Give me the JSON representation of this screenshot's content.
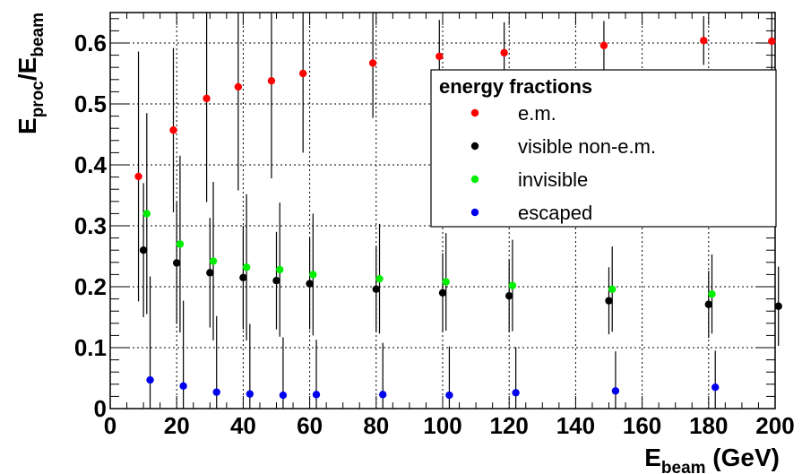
{
  "chart_data": {
    "type": "scatter",
    "xlabel_main": "E",
    "xlabel_sub": "beam",
    "xlabel_unit": " (GeV)",
    "ylabel_main": "E",
    "ylabel_sub1": "proc",
    "ylabel_sep": "/E",
    "ylabel_sub2": "beam",
    "xlim": [
      0,
      200
    ],
    "ylim": [
      0,
      0.65
    ],
    "xticks": [
      "0",
      "20",
      "40",
      "60",
      "80",
      "100",
      "120",
      "140",
      "160",
      "180",
      "200"
    ],
    "yticks": [
      "0",
      "0.1",
      "0.2",
      "0.3",
      "0.4",
      "0.5",
      "0.6"
    ],
    "grid": true,
    "legend_title": "energy fractions",
    "legend_position": "top-right",
    "series": [
      {
        "name": "e.m.",
        "color": "#ff0000",
        "x": [
          8.5,
          19,
          29,
          38.5,
          48.5,
          58,
          79,
          99,
          118.5,
          148.5,
          178.5,
          199
        ],
        "y": [
          0.381,
          0.457,
          0.509,
          0.528,
          0.538,
          0.55,
          0.567,
          0.578,
          0.584,
          0.596,
          0.604,
          0.603
        ],
        "err": [
          0.205,
          0.135,
          0.17,
          0.17,
          0.16,
          0.13,
          0.09,
          0.06,
          0.05,
          0.04,
          0.04,
          0.06
        ]
      },
      {
        "name": "visible non-e.m.",
        "color": "#000000",
        "x": [
          10,
          20,
          30,
          40,
          50,
          60,
          80,
          100,
          120,
          150,
          180,
          201
        ],
        "y": [
          0.26,
          0.239,
          0.223,
          0.215,
          0.21,
          0.205,
          0.196,
          0.19,
          0.185,
          0.177,
          0.171,
          0.168
        ],
        "err": [
          0.11,
          0.1,
          0.09,
          0.085,
          0.08,
          0.075,
          0.07,
          0.065,
          0.06,
          0.055,
          0.055,
          0.065
        ]
      },
      {
        "name": "invisible",
        "color": "#00ee00",
        "x": [
          11,
          21,
          31,
          41,
          51,
          61,
          81,
          101,
          121,
          151,
          181
        ],
        "y": [
          0.32,
          0.27,
          0.242,
          0.232,
          0.228,
          0.22,
          0.213,
          0.208,
          0.202,
          0.196,
          0.188
        ],
        "err": [
          0.165,
          0.145,
          0.13,
          0.12,
          0.11,
          0.1,
          0.09,
          0.08,
          0.075,
          0.07,
          0.065
        ]
      },
      {
        "name": "escaped",
        "color": "#0000ee",
        "x": [
          12,
          22,
          32,
          42,
          52,
          62,
          82,
          102,
          122,
          152,
          182
        ],
        "y": [
          0.047,
          0.037,
          0.027,
          0.024,
          0.022,
          0.023,
          0.023,
          0.022,
          0.026,
          0.029,
          0.035
        ],
        "err": [
          0.17,
          0.14,
          0.125,
          0.115,
          0.095,
          0.09,
          0.085,
          0.08,
          0.075,
          0.065,
          0.06
        ]
      }
    ]
  }
}
